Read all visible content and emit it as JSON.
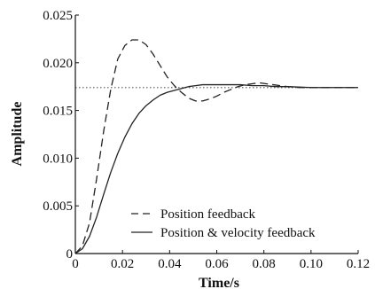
{
  "chart_data": {
    "type": "line",
    "title": "",
    "xlabel": "Time/s",
    "ylabel": "Amplitude",
    "xlim": [
      0,
      0.12
    ],
    "ylim": [
      0,
      0.025
    ],
    "xticks": [
      0,
      0.02,
      0.04,
      0.06,
      0.08,
      0.1,
      0.12
    ],
    "xtick_labels": [
      "0",
      "0.02",
      "0.04",
      "0.06",
      "0.08",
      "0.10",
      "0.12"
    ],
    "yticks": [
      0,
      0.005,
      0.01,
      0.015,
      0.02,
      0.025
    ],
    "ytick_labels": [
      "0",
      "0.005",
      "0.010",
      "0.015",
      "0.020",
      "0.025"
    ],
    "grid": false,
    "legend_position": "bottom-right",
    "reference_line": {
      "y": 0.0174,
      "style": "dotted"
    },
    "series": [
      {
        "name": "Position feedback",
        "style": "dashed",
        "color": "#222222",
        "x": [
          0,
          0.003,
          0.006,
          0.009,
          0.012,
          0.015,
          0.018,
          0.021,
          0.024,
          0.027,
          0.03,
          0.033,
          0.036,
          0.039,
          0.042,
          0.045,
          0.048,
          0.051,
          0.054,
          0.057,
          0.06,
          0.063,
          0.066,
          0.069,
          0.072,
          0.075,
          0.078,
          0.081,
          0.084,
          0.087,
          0.09,
          0.095,
          0.1,
          0.105,
          0.11,
          0.12
        ],
        "y": [
          0,
          0.0008,
          0.0032,
          0.0078,
          0.0128,
          0.0172,
          0.0204,
          0.0218,
          0.0224,
          0.0224,
          0.0219,
          0.0209,
          0.0197,
          0.0185,
          0.0176,
          0.0169,
          0.0163,
          0.016,
          0.016,
          0.0162,
          0.0165,
          0.0169,
          0.0172,
          0.0175,
          0.0177,
          0.0178,
          0.0179,
          0.0178,
          0.0177,
          0.0176,
          0.0175,
          0.0174,
          0.0174,
          0.0174,
          0.0174,
          0.0174
        ]
      },
      {
        "name": "Position & velocity feedback",
        "style": "solid",
        "color": "#222222",
        "x": [
          0,
          0.003,
          0.006,
          0.009,
          0.012,
          0.015,
          0.018,
          0.021,
          0.024,
          0.027,
          0.03,
          0.033,
          0.036,
          0.039,
          0.042,
          0.045,
          0.048,
          0.051,
          0.054,
          0.057,
          0.06,
          0.065,
          0.07,
          0.075,
          0.08,
          0.085,
          0.09,
          0.1,
          0.11,
          0.12
        ],
        "y": [
          0,
          0.0005,
          0.0018,
          0.0038,
          0.0062,
          0.0085,
          0.0105,
          0.0122,
          0.0136,
          0.0147,
          0.0155,
          0.0161,
          0.0166,
          0.0169,
          0.0171,
          0.0173,
          0.0175,
          0.0176,
          0.0177,
          0.0177,
          0.0177,
          0.0177,
          0.0177,
          0.0176,
          0.0176,
          0.0175,
          0.0175,
          0.0174,
          0.0174,
          0.0174
        ]
      }
    ]
  }
}
